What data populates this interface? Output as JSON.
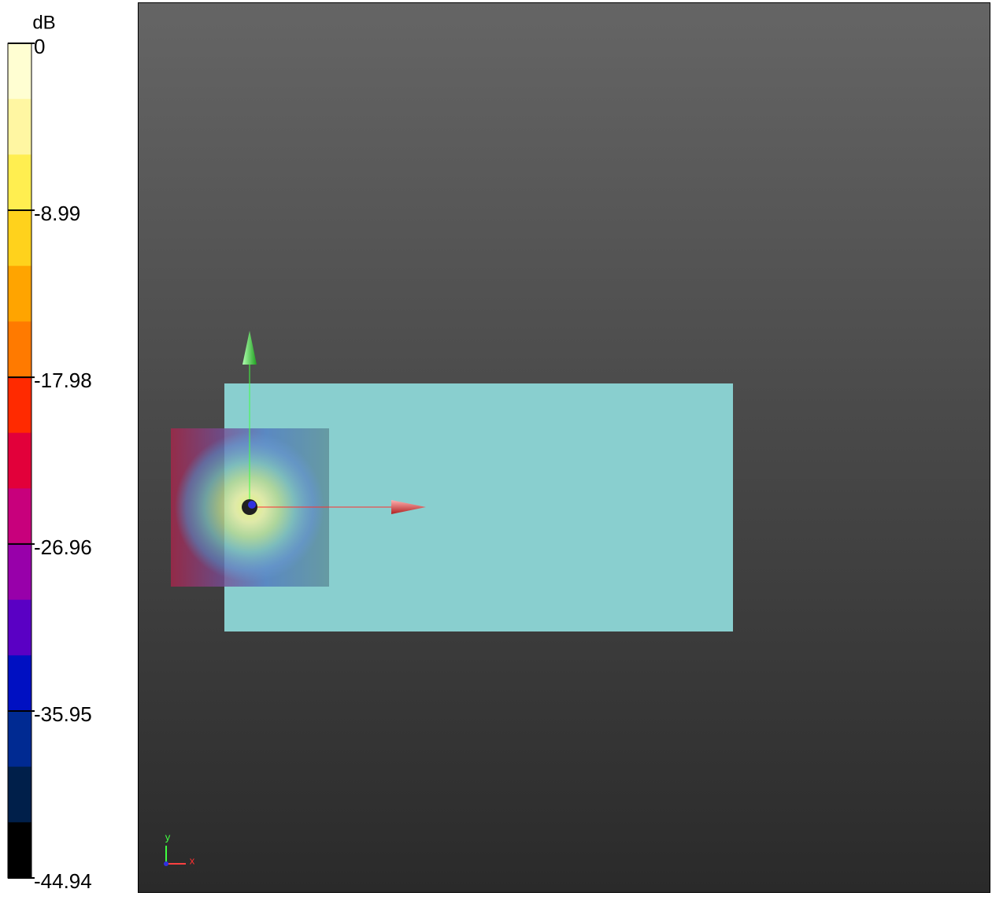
{
  "colorbar": {
    "unit": "dB",
    "range": [
      -44.94,
      0
    ],
    "ticks": [
      0,
      -8.99,
      -17.98,
      -26.96,
      -35.95,
      -44.94
    ],
    "colors": [
      "#fffed2",
      "#fff6a2",
      "#ffee50",
      "#ffd21c",
      "#ffa400",
      "#ff7a00",
      "#ff2a00",
      "#e2003a",
      "#c8007c",
      "#9800aa",
      "#5a00c4",
      "#0010c2",
      "#002a92",
      "#001f4a",
      "#000000"
    ]
  },
  "axes_triad": {
    "x": "x",
    "y": "y"
  }
}
